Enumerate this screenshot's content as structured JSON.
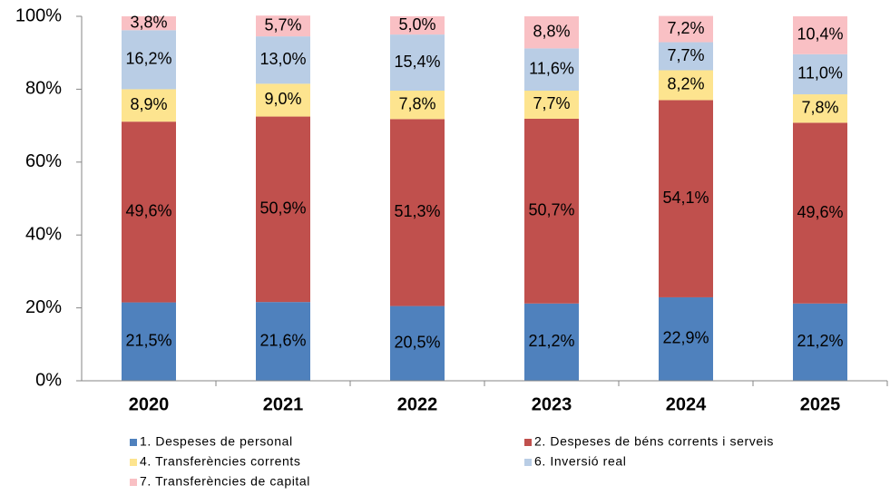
{
  "chart_data": {
    "type": "stacked_bar",
    "categories": [
      "2020",
      "2021",
      "2022",
      "2023",
      "2024",
      "2025"
    ],
    "series": [
      {
        "name": "1. Despeses de personal",
        "color": "#4f81bd",
        "values": [
          21.5,
          21.6,
          20.5,
          21.2,
          22.9,
          21.2
        ],
        "value_labels": [
          "21,5%",
          "21,6%",
          "20,5%",
          "21,2%",
          "22,9%",
          "21,2%"
        ]
      },
      {
        "name": "2. Despeses de béns corrents i serveis",
        "color": "#c0504d",
        "values": [
          49.6,
          50.9,
          51.3,
          50.7,
          54.1,
          49.6
        ],
        "value_labels": [
          "49,6%",
          "50,9%",
          "51,3%",
          "50,7%",
          "54,1%",
          "49,6%"
        ]
      },
      {
        "name": "4. Transferències corrents",
        "color": "#fde48f",
        "values": [
          8.9,
          9.0,
          7.8,
          7.7,
          8.2,
          7.8
        ],
        "value_labels": [
          "8,9%",
          "9,0%",
          "7,8%",
          "7,7%",
          "8,2%",
          "7,8%"
        ]
      },
      {
        "name": "6. Inversió real",
        "color": "#b9cde5",
        "values": [
          16.2,
          13.0,
          15.4,
          11.6,
          7.7,
          11.0
        ],
        "value_labels": [
          "16,2%",
          "13,0%",
          "15,4%",
          "11,6%",
          "7,7%",
          "11,0%"
        ]
      },
      {
        "name": "7. Transferències de capital",
        "color": "#f9c0c4",
        "values": [
          3.8,
          5.7,
          5.0,
          8.8,
          7.2,
          10.4
        ],
        "value_labels": [
          "3,8%",
          "5,7%",
          "5,0%",
          "8,8%",
          "7,2%",
          "10,4%"
        ]
      }
    ],
    "ylim": [
      0,
      100
    ],
    "yticks": [
      {
        "value": 0,
        "label": "0%"
      },
      {
        "value": 20,
        "label": "20%"
      },
      {
        "value": 40,
        "label": "40%"
      },
      {
        "value": 60,
        "label": "60%"
      },
      {
        "value": 80,
        "label": "80%"
      },
      {
        "value": 100,
        "label": "100%"
      }
    ],
    "grid": false
  }
}
